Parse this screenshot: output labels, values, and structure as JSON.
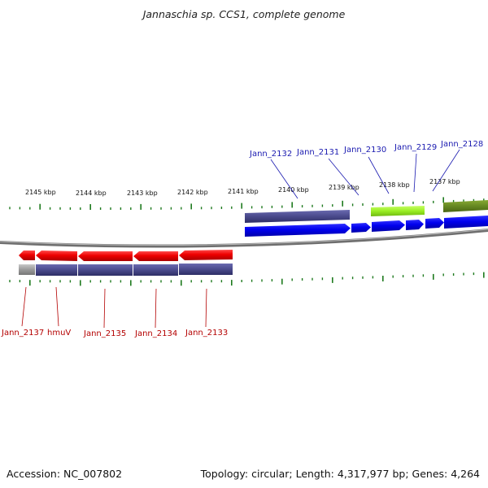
{
  "title": "Jannaschia sp. CCS1, complete genome",
  "footer": {
    "accession": "Accession: NC_007802",
    "summary": "Topology: circular; Length: 4,317,977 bp; Genes: 4,264"
  },
  "kbp_labels": [
    "2145 kbp",
    "2144 kbp",
    "2143 kbp",
    "2142 kbp",
    "2141 kbp",
    "2140 kbp",
    "2139 kbp",
    "2138 kbp",
    "2137 kbp"
  ],
  "genes_forward": [
    "Jann_2132",
    "Jann_2131",
    "Jann_2130",
    "Jann_2129",
    "Jann_2128"
  ],
  "genes_reverse": [
    "Jann_2137",
    "hmuV",
    "Jann_2135",
    "Jann_2134",
    "Jann_2133"
  ],
  "colors": {
    "forward_cds": "#0000ee",
    "reverse_cds": "#ee0000",
    "forward_gene_label": "#1a1ab0",
    "reverse_gene_label": "#b40000",
    "cog_purple": "#4a4a8c",
    "cog_lime": "#99ee22",
    "cog_olive": "#668822",
    "cog_gray": "#9a9a9a",
    "tick": "#1e7a1e",
    "backbone": "#777777"
  }
}
